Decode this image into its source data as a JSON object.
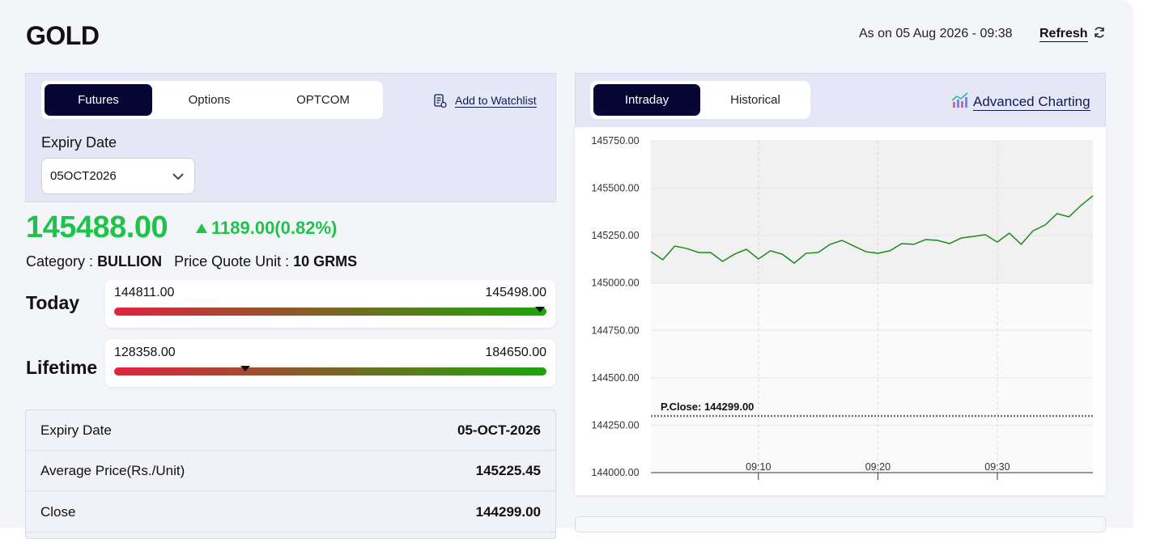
{
  "header": {
    "title": "GOLD",
    "as_on": "As on 05 Aug 2026 - 09:38",
    "refresh": "Refresh"
  },
  "tabs": [
    "Futures",
    "Options",
    "OPTCOM"
  ],
  "watchlist": "Add to Watchlist",
  "expiry": {
    "label": "Expiry Date",
    "value": "05OCT2026"
  },
  "price": {
    "value": "145488.00",
    "change": "1189.00(0.82%)"
  },
  "category": {
    "label": "Category :",
    "value": "BULLION",
    "unit_label": "Price Quote Unit :",
    "unit_value": "10 GRMS"
  },
  "ranges": [
    {
      "label": "Today",
      "low": "144811.00",
      "high": "145498.00"
    },
    {
      "label": "Lifetime",
      "low": "128358.00",
      "high": "184650.00"
    }
  ],
  "details": [
    [
      "Expiry Date",
      "05-OCT-2026"
    ],
    [
      "Average Price(Rs./Unit)",
      "145225.45"
    ],
    [
      "Close",
      "144299.00"
    ]
  ],
  "chart_tabs": [
    "Intraday",
    "Historical"
  ],
  "advanced": "Advanced Charting",
  "chart_data": {
    "type": "line",
    "x": [
      "09:01",
      "09:02",
      "09:03",
      "09:04",
      "09:05",
      "09:06",
      "09:07",
      "09:08",
      "09:09",
      "09:10",
      "09:11",
      "09:12",
      "09:13",
      "09:14",
      "09:15",
      "09:16",
      "09:17",
      "09:18",
      "09:19",
      "09:20",
      "09:21",
      "09:22",
      "09:23",
      "09:24",
      "09:25",
      "09:26",
      "09:27",
      "09:28",
      "09:29",
      "09:30",
      "09:31",
      "09:32",
      "09:33",
      "09:34",
      "09:35",
      "09:36",
      "09:37",
      "09:38"
    ],
    "values": [
      145165,
      145123,
      145195,
      145182,
      145161,
      145161,
      145114,
      145152,
      145178,
      145127,
      145170,
      145152,
      145105,
      145157,
      145161,
      145204,
      145225,
      145195,
      145165,
      145157,
      145170,
      145208,
      145204,
      145229,
      145225,
      145208,
      145238,
      145246,
      145255,
      145216,
      145263,
      145204,
      145276,
      145306,
      145366,
      145349,
      145409,
      145460
    ],
    "color": "#1a8a1a",
    "xlim": [
      "09:01",
      "09:38"
    ],
    "xticks": [
      "09:10",
      "09:20",
      "09:30"
    ],
    "ylim": [
      144000,
      145750
    ],
    "yticks": [
      {
        "value": 144000,
        "label": "144000.00"
      },
      {
        "value": 144250,
        "label": "144250.00"
      },
      {
        "value": 144500,
        "label": "144500.00"
      },
      {
        "value": 144750,
        "label": "144750.00"
      },
      {
        "value": 145000,
        "label": "145000.00"
      },
      {
        "value": 145250,
        "label": "145250.00"
      },
      {
        "value": 145500,
        "label": "145500.00"
      },
      {
        "value": 145750,
        "label": "145750.00"
      }
    ],
    "grid": true,
    "reference": {
      "label": "P.Close: 144299.00",
      "value": 144299
    }
  }
}
